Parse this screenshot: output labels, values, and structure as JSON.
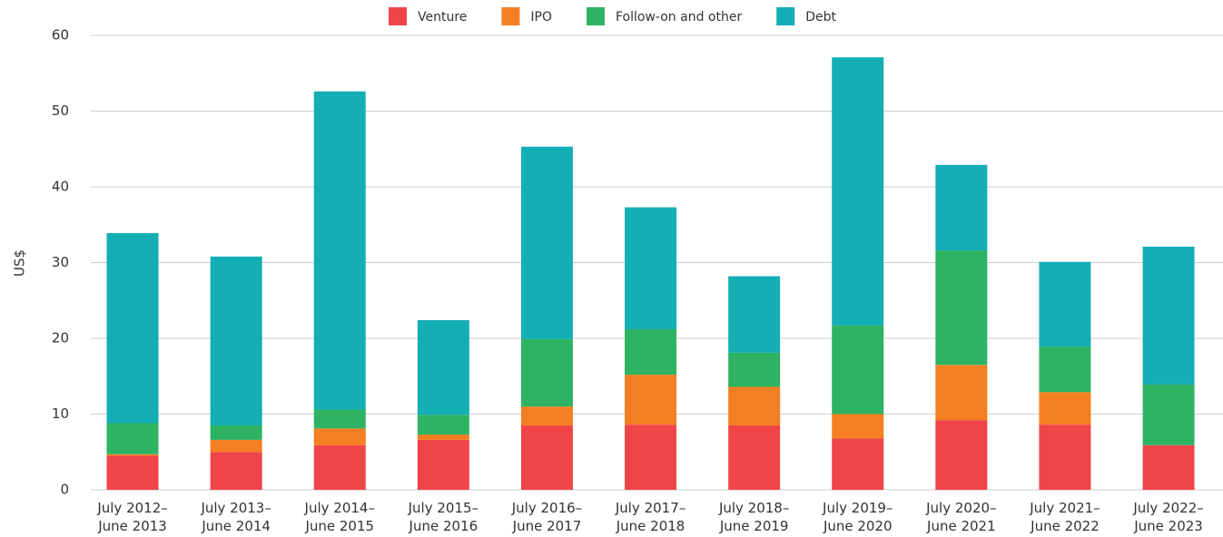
{
  "chart_data": {
    "type": "stacked_bar",
    "y_label": "US$",
    "categories": [
      "July 2012–June 2013",
      "July 2013–June 2014",
      "July 2014–June 2015",
      "July 2015–June 2016",
      "July 2016–June 2017",
      "July 2017–June 2018",
      "July 2018–June 2019",
      "July 2019–June 2020",
      "July 2020–June 2021",
      "July 2021–June 2022",
      "July 2022–June 2023"
    ],
    "series": [
      {
        "name": "Venture",
        "color": "#ef4549",
        "values": [
          4.5,
          5.0,
          5.9,
          6.6,
          8.5,
          8.6,
          8.5,
          6.8,
          9.2,
          8.6,
          5.9
        ]
      },
      {
        "name": "IPO",
        "color": "#f47f22",
        "values": [
          0.2,
          1.6,
          2.2,
          0.7,
          2.5,
          6.6,
          5.1,
          3.2,
          7.3,
          4.3,
          0
        ]
      },
      {
        "name": "Follow-on and other",
        "color": "#2db362",
        "values": [
          4.1,
          1.9,
          2.5,
          2.6,
          8.9,
          6.0,
          4.5,
          11.7,
          15.1,
          6.0,
          8.0
        ]
      },
      {
        "name": "Debt",
        "color": "#14aeb5",
        "values": [
          25.1,
          22.3,
          42.0,
          12.5,
          25.4,
          16.1,
          10.1,
          35.4,
          11.3,
          11.2,
          18.2
        ]
      }
    ],
    "ylim": [
      0,
      60
    ],
    "yticks": [
      0,
      10,
      20,
      30,
      40,
      50,
      60
    ],
    "grid": true,
    "legend": "top"
  }
}
